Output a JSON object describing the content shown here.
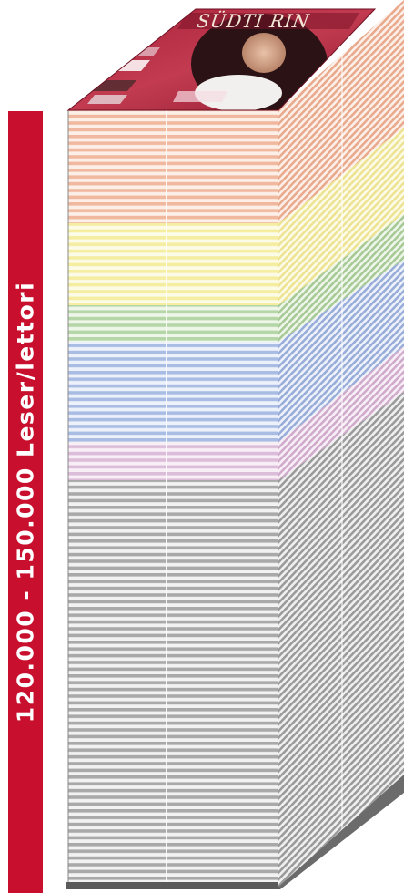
{
  "readership": {
    "label": "120.000 - 150.000 Leser/lettori",
    "bar_color": "#c8102e"
  },
  "magazine": {
    "masthead": "SÜDTI     RIN"
  },
  "stack_layers": [
    {
      "name": "salmon",
      "color": "#f0b89f"
    },
    {
      "name": "yellow",
      "color": "#f5eda0"
    },
    {
      "name": "green",
      "color": "#b5d6a6"
    },
    {
      "name": "blue",
      "color": "#a9bde4"
    },
    {
      "name": "pink",
      "color": "#dcbdd9"
    },
    {
      "name": "grey",
      "color": "#a9a9a9"
    }
  ]
}
